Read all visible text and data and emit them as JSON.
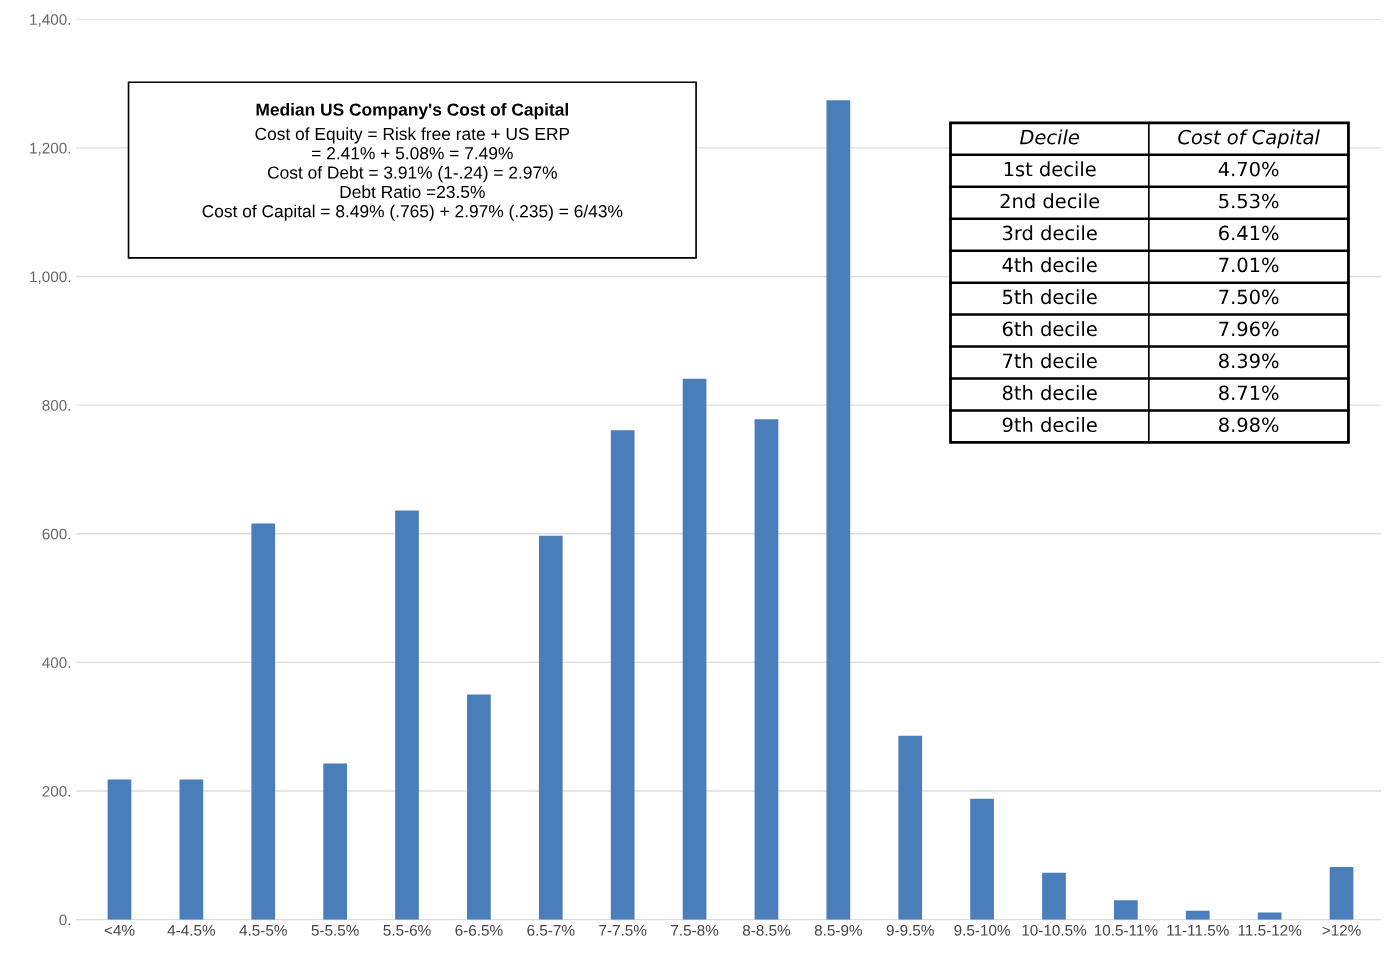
{
  "chart_data": {
    "type": "bar",
    "categories": [
      "<4%",
      "4-4.5%",
      "4.5-5%",
      "5-5.5%",
      "5.5-6%",
      "6-6.5%",
      "6.5-7%",
      "7-7.5%",
      "7.5-8%",
      "8-8.5%",
      "8.5-9%",
      "9-9.5%",
      "9.5-10%",
      "10-10.5%",
      "10.5-11%",
      "11-11.5%",
      "11.5-12%",
      ">12%"
    ],
    "values": [
      218,
      218,
      616,
      243,
      636,
      350,
      597,
      761,
      841,
      778,
      1274,
      286,
      188,
      73,
      30,
      14,
      11,
      82
    ],
    "color": "#4a7ebb",
    "ylim": [
      0,
      1400
    ],
    "yticks": [
      {
        "value": 0,
        "label": "0."
      },
      {
        "value": 200,
        "label": "200."
      },
      {
        "value": 400,
        "label": "400."
      },
      {
        "value": 600,
        "label": "600."
      },
      {
        "value": 800,
        "label": "800."
      },
      {
        "value": 1000,
        "label": "1,000."
      },
      {
        "value": 1200,
        "label": "1,200."
      },
      {
        "value": 1400,
        "label": "1,400."
      }
    ],
    "grid": "y",
    "annotations": [
      "Median US Company's Cost of Capital",
      "Cost of Equity = Risk free rate + US ERP\n= 2.41% + 5.08% = 7.49%\nCost of Debt = 3.91% (1-.24) = 2.97%\nDebt Ratio =23.5%\nCost of Capital = 8.49% (.765) + 2.97% (.235) = 6/43%",
      "Decile",
      "Cost of Capital",
      "1st decile",
      "4.70%",
      "2nd decile",
      "5.53%",
      "3rd decile",
      "6.41%",
      "4th decile",
      "7.01%",
      "5th decile",
      "7.50%",
      "6th decile",
      "7.96%",
      "7th decile",
      "8.39%",
      "8th decile",
      "8.71%",
      "9th decile",
      "8.98%"
    ]
  }
}
